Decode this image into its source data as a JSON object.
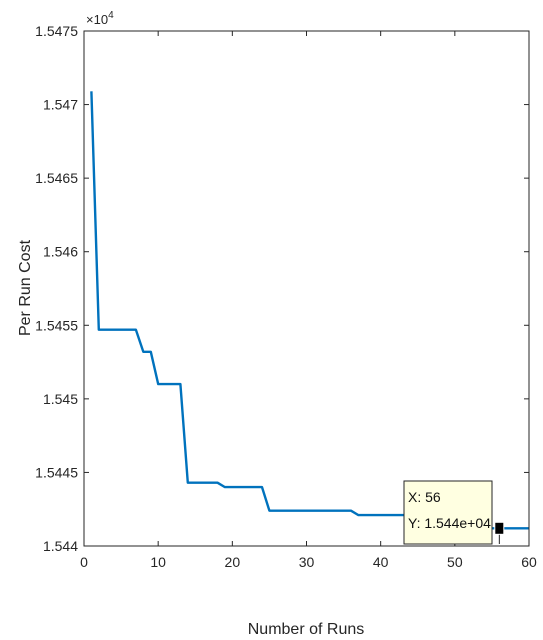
{
  "chart_data": {
    "type": "line",
    "xlabel": "Number of Runs",
    "ylabel": "Per Run Cost",
    "y_multiplier": "×10",
    "y_multiplier_exponent": "4",
    "xlim": [
      0,
      60
    ],
    "ylim": [
      1.544,
      1.5475
    ],
    "xticks": [
      0,
      10,
      20,
      30,
      40,
      50,
      60
    ],
    "xtick_labels": [
      "0",
      "10",
      "20",
      "30",
      "40",
      "50",
      "60"
    ],
    "yticks": [
      1.544,
      1.5445,
      1.545,
      1.5455,
      1.546,
      1.5465,
      1.547,
      1.5475
    ],
    "ytick_labels": [
      "1.544",
      "1.5445",
      "1.545",
      "1.5455",
      "1.546",
      "1.5465",
      "1.547",
      "1.5475"
    ],
    "grid": false,
    "line_color": "#0072bd",
    "series": [
      {
        "x": [
          1,
          2,
          3,
          4,
          5,
          6,
          7,
          8,
          9,
          10,
          11,
          12,
          13,
          14,
          15,
          16,
          17,
          18,
          19,
          20,
          21,
          22,
          23,
          24,
          25,
          26,
          27,
          28,
          29,
          30,
          31,
          32,
          33,
          34,
          35,
          36,
          37,
          38,
          39,
          40,
          41,
          42,
          43,
          44,
          45,
          46,
          47,
          48,
          49,
          50,
          51,
          52,
          53,
          54,
          55,
          56,
          57,
          58,
          59,
          60
        ],
        "y": [
          1.54709,
          1.54547,
          1.54547,
          1.54547,
          1.54547,
          1.54547,
          1.54547,
          1.54532,
          1.54532,
          1.5451,
          1.5451,
          1.5451,
          1.5451,
          1.54443,
          1.54443,
          1.54443,
          1.54443,
          1.54443,
          1.5444,
          1.5444,
          1.5444,
          1.5444,
          1.5444,
          1.5444,
          1.54424,
          1.54424,
          1.54424,
          1.54424,
          1.54424,
          1.54424,
          1.54424,
          1.54424,
          1.54424,
          1.54424,
          1.54424,
          1.54424,
          1.54421,
          1.54421,
          1.54421,
          1.54421,
          1.54421,
          1.54421,
          1.54421,
          1.54421,
          1.54421,
          1.54421,
          1.54421,
          1.54421,
          1.54421,
          1.54421,
          1.54421,
          1.54421,
          1.54412,
          1.54412,
          1.54412,
          1.54412,
          1.54412,
          1.54412,
          1.54412,
          1.54412
        ]
      }
    ],
    "datatip": {
      "x_value": 56,
      "y_value": 1.54412,
      "x_text": "X: 56",
      "y_text": "Y: 1.544e+04",
      "bg_color": "#ffffe1"
    }
  }
}
